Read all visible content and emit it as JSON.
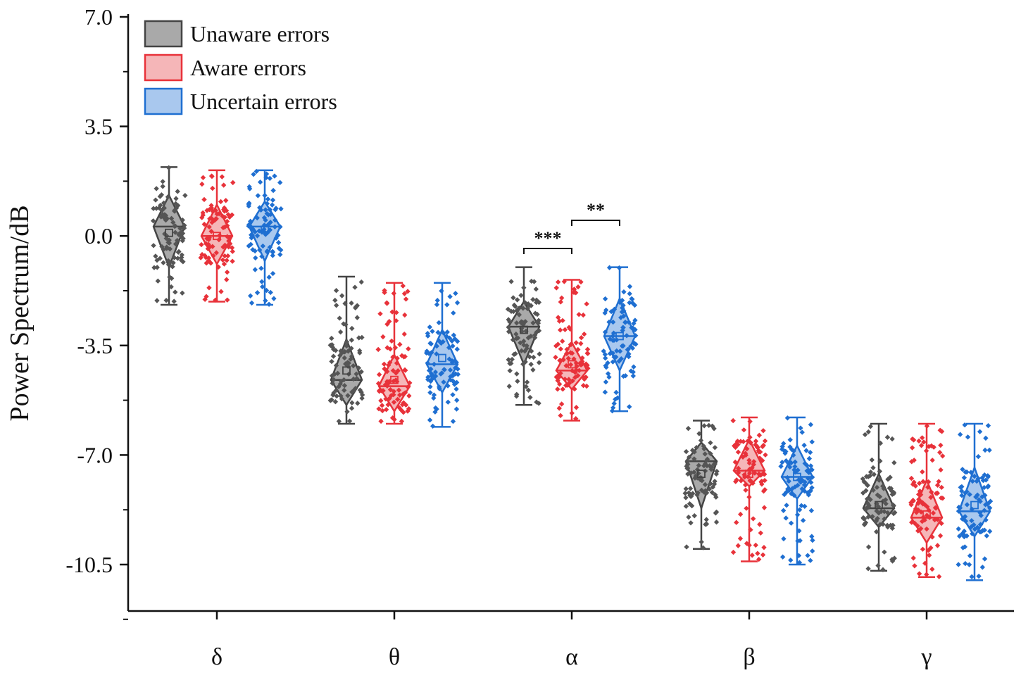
{
  "chart_data": {
    "type": "box-diamond-scatter",
    "ylabel": "Power Spectrum/dB",
    "ylim": [
      -12.0,
      7.0
    ],
    "yticks": [
      {
        "value": 7.0,
        "label": "7.0"
      },
      {
        "value": 3.5,
        "label": "3.5"
      },
      {
        "value": 0.0,
        "label": "0.0"
      },
      {
        "value": -3.5,
        "label": "-3.5"
      },
      {
        "value": -7.0,
        "label": "-7.0"
      },
      {
        "value": -10.5,
        "label": "-10.5"
      }
    ],
    "categories": [
      "δ",
      "θ",
      "α",
      "β",
      "γ"
    ],
    "legend_position": "top-left",
    "series": [
      {
        "name": "Unaware errors",
        "stroke": "#444444",
        "fill": "#a9a9a9",
        "point": "#555555",
        "stats": [
          {
            "min": -2.2,
            "max": 2.2,
            "q1": -1.0,
            "q3": 1.3,
            "median": 0.3,
            "mean": 0.1
          },
          {
            "min": -6.0,
            "max": -1.3,
            "q1": -5.4,
            "q3": -3.3,
            "median": -4.6,
            "mean": -4.3
          },
          {
            "min": -5.4,
            "max": -1.0,
            "q1": -4.1,
            "q3": -2.1,
            "median": -2.9,
            "mean": -3.0
          },
          {
            "min": -10.0,
            "max": -5.9,
            "q1": -8.7,
            "q3": -6.6,
            "median": -7.2,
            "mean": -7.6
          },
          {
            "min": -10.7,
            "max": -6.0,
            "q1": -9.3,
            "q3": -7.6,
            "median": -8.7,
            "mean": -8.6
          }
        ]
      },
      {
        "name": "Aware errors",
        "stroke": "#e8323a",
        "fill": "#f5b6b8",
        "point": "#e8323a",
        "stats": [
          {
            "min": -2.1,
            "max": 2.1,
            "q1": -0.9,
            "q3": 1.0,
            "median": 0.0,
            "mean": 0.0
          },
          {
            "min": -6.0,
            "max": -1.5,
            "q1": -5.6,
            "q3": -3.8,
            "median": -4.8,
            "mean": -4.6
          },
          {
            "min": -5.9,
            "max": -1.4,
            "q1": -4.9,
            "q3": -3.4,
            "median": -4.3,
            "mean": -4.1
          },
          {
            "min": -10.4,
            "max": -5.8,
            "q1": -8.0,
            "q3": -6.5,
            "median": -7.5,
            "mean": -7.6
          },
          {
            "min": -10.9,
            "max": -6.0,
            "q1": -9.8,
            "q3": -7.8,
            "median": -9.0,
            "mean": -8.9
          }
        ]
      },
      {
        "name": "Uncertain errors",
        "stroke": "#1f6fd1",
        "fill": "#a9c8ee",
        "point": "#1f6fd1",
        "stats": [
          {
            "min": -2.2,
            "max": 2.1,
            "q1": -0.8,
            "q3": 1.1,
            "median": 0.3,
            "mean": 0.2
          },
          {
            "min": -6.1,
            "max": -1.5,
            "q1": -5.0,
            "q3": -3.0,
            "median": -4.1,
            "mean": -3.9
          },
          {
            "min": -5.6,
            "max": -1.0,
            "q1": -4.3,
            "q3": -2.0,
            "median": -3.2,
            "mean": -3.2
          },
          {
            "min": -10.5,
            "max": -5.8,
            "q1": -8.4,
            "q3": -6.7,
            "median": -7.7,
            "mean": -7.7
          },
          {
            "min": -11.0,
            "max": -6.0,
            "q1": -9.6,
            "q3": -7.4,
            "median": -8.8,
            "mean": -8.6
          }
        ]
      }
    ],
    "significance": [
      {
        "category": "α",
        "from": 0,
        "to": 1,
        "label": "***",
        "y": -0.4
      },
      {
        "category": "α",
        "from": 1,
        "to": 2,
        "label": "**",
        "y": 0.5
      }
    ]
  }
}
